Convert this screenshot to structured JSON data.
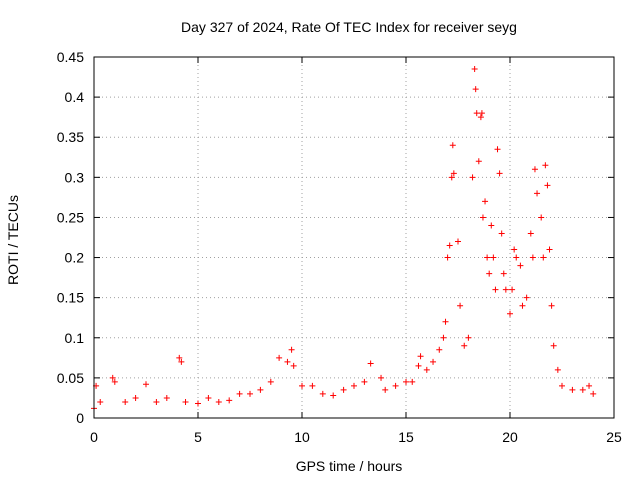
{
  "chart_data": {
    "type": "scatter",
    "title": "Day 327 of 2024, Rate Of TEC Index for receiver seyg",
    "xlabel": "GPS time / hours",
    "ylabel": "ROTI / TECUs",
    "xlim": [
      0,
      25
    ],
    "ylim": [
      0,
      0.45
    ],
    "xticks": [
      0,
      5,
      10,
      15,
      20,
      25
    ],
    "yticks": [
      0,
      0.05,
      0.1,
      0.15,
      0.2,
      0.25,
      0.3,
      0.35,
      0.4,
      0.45
    ],
    "xtick_labels": [
      "0",
      "5",
      "10",
      "15",
      "20",
      "25"
    ],
    "ytick_labels": [
      "0",
      "0.05",
      "0.1",
      "0.15",
      "0.2",
      "0.25",
      "0.3",
      "0.35",
      "0.4",
      "0.45"
    ],
    "grid": true,
    "marker": "plus",
    "color": "#ff0000",
    "series": [
      {
        "name": "ROTI",
        "points": [
          [
            0.0,
            0.012
          ],
          [
            0.1,
            0.04
          ],
          [
            0.3,
            0.02
          ],
          [
            0.9,
            0.05
          ],
          [
            1.0,
            0.045
          ],
          [
            1.5,
            0.02
          ],
          [
            2.0,
            0.025
          ],
          [
            2.5,
            0.042
          ],
          [
            3.0,
            0.02
          ],
          [
            3.5,
            0.025
          ],
          [
            4.1,
            0.075
          ],
          [
            4.2,
            0.07
          ],
          [
            4.4,
            0.02
          ],
          [
            5.0,
            0.018
          ],
          [
            5.5,
            0.025
          ],
          [
            6.0,
            0.02
          ],
          [
            6.5,
            0.022
          ],
          [
            7.0,
            0.03
          ],
          [
            7.5,
            0.03
          ],
          [
            8.0,
            0.035
          ],
          [
            8.5,
            0.045
          ],
          [
            8.9,
            0.075
          ],
          [
            9.3,
            0.07
          ],
          [
            9.5,
            0.085
          ],
          [
            9.6,
            0.065
          ],
          [
            10.0,
            0.04
          ],
          [
            10.5,
            0.04
          ],
          [
            11.0,
            0.03
          ],
          [
            11.5,
            0.028
          ],
          [
            12.0,
            0.035
          ],
          [
            12.5,
            0.04
          ],
          [
            13.0,
            0.045
          ],
          [
            13.3,
            0.068
          ],
          [
            13.8,
            0.05
          ],
          [
            14.0,
            0.035
          ],
          [
            14.5,
            0.04
          ],
          [
            15.0,
            0.045
          ],
          [
            15.3,
            0.045
          ],
          [
            15.6,
            0.065
          ],
          [
            15.7,
            0.077
          ],
          [
            16.0,
            0.06
          ],
          [
            16.3,
            0.07
          ],
          [
            16.6,
            0.085
          ],
          [
            16.8,
            0.1
          ],
          [
            16.9,
            0.12
          ],
          [
            17.0,
            0.2
          ],
          [
            17.1,
            0.215
          ],
          [
            17.2,
            0.3
          ],
          [
            17.25,
            0.34
          ],
          [
            17.3,
            0.305
          ],
          [
            17.5,
            0.22
          ],
          [
            17.6,
            0.14
          ],
          [
            17.8,
            0.09
          ],
          [
            18.0,
            0.1
          ],
          [
            18.2,
            0.3
          ],
          [
            18.3,
            0.435
          ],
          [
            18.35,
            0.41
          ],
          [
            18.4,
            0.38
          ],
          [
            18.5,
            0.32
          ],
          [
            18.6,
            0.375
          ],
          [
            18.65,
            0.38
          ],
          [
            18.7,
            0.25
          ],
          [
            18.8,
            0.27
          ],
          [
            18.9,
            0.2
          ],
          [
            19.0,
            0.18
          ],
          [
            19.1,
            0.24
          ],
          [
            19.2,
            0.2
          ],
          [
            19.3,
            0.16
          ],
          [
            19.4,
            0.335
          ],
          [
            19.5,
            0.305
          ],
          [
            19.6,
            0.23
          ],
          [
            19.7,
            0.18
          ],
          [
            19.8,
            0.16
          ],
          [
            20.0,
            0.13
          ],
          [
            20.1,
            0.16
          ],
          [
            20.2,
            0.21
          ],
          [
            20.3,
            0.2
          ],
          [
            20.5,
            0.19
          ],
          [
            20.6,
            0.14
          ],
          [
            20.8,
            0.15
          ],
          [
            21.0,
            0.23
          ],
          [
            21.1,
            0.2
          ],
          [
            21.2,
            0.31
          ],
          [
            21.3,
            0.28
          ],
          [
            21.5,
            0.25
          ],
          [
            21.6,
            0.2
          ],
          [
            21.7,
            0.315
          ],
          [
            21.8,
            0.29
          ],
          [
            21.9,
            0.21
          ],
          [
            22.0,
            0.14
          ],
          [
            22.1,
            0.09
          ],
          [
            22.3,
            0.06
          ],
          [
            22.5,
            0.04
          ],
          [
            23.0,
            0.035
          ],
          [
            23.5,
            0.035
          ],
          [
            23.8,
            0.04
          ],
          [
            24.0,
            0.03
          ]
        ]
      }
    ]
  }
}
